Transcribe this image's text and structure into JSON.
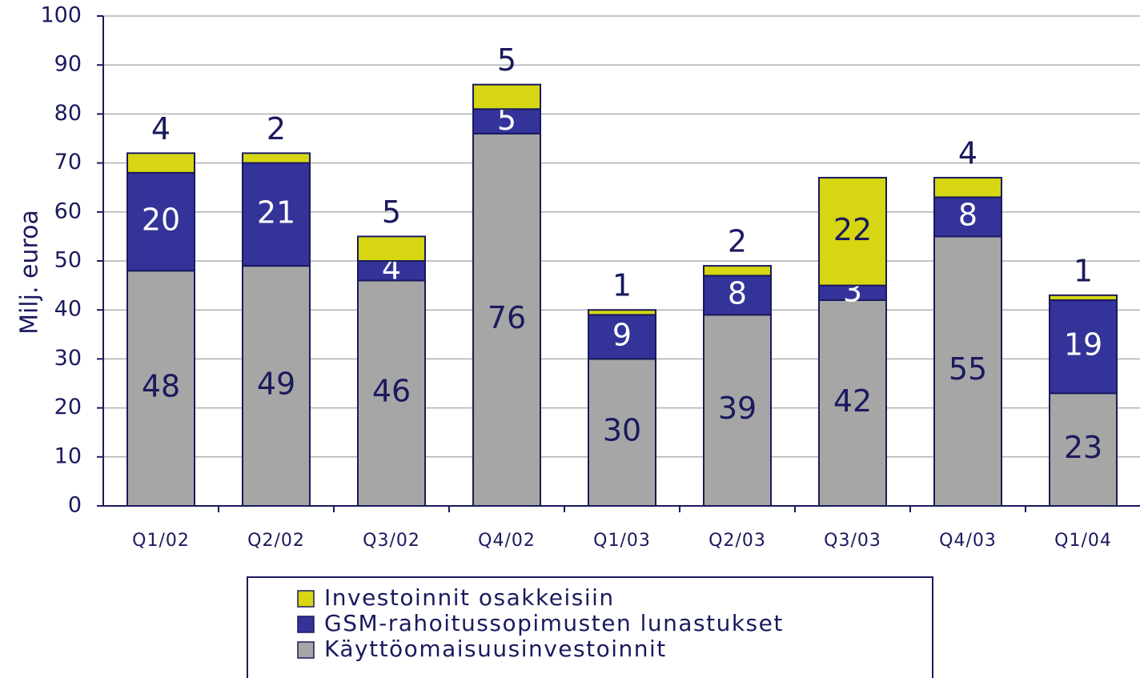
{
  "chart_data": {
    "type": "stacked_bar",
    "y_label": "Milj. euroa",
    "categories": [
      "Q1/02",
      "Q2/02",
      "Q3/02",
      "Q4/02",
      "Q1/03",
      "Q2/03",
      "Q3/03",
      "Q4/03",
      "Q1/04"
    ],
    "series": [
      {
        "name": "Käyttöomaisuusinvestoinnit",
        "color": "#a6a6a6",
        "values": [
          48,
          49,
          46,
          76,
          30,
          39,
          42,
          55,
          23
        ]
      },
      {
        "name": "GSM-rahoitussopimusten lunastukset",
        "color": "#333399",
        "values": [
          20,
          21,
          4,
          5,
          9,
          8,
          3,
          8,
          19
        ]
      },
      {
        "name": "Investoinnit osakkeisiin",
        "color": "#d6d612",
        "values": [
          4,
          2,
          5,
          5,
          1,
          2,
          22,
          4,
          1
        ]
      }
    ],
    "ylim": [
      0,
      100
    ],
    "yticks": [
      0,
      10,
      20,
      30,
      40,
      50,
      60,
      70,
      80,
      90,
      100
    ],
    "grid": true
  }
}
